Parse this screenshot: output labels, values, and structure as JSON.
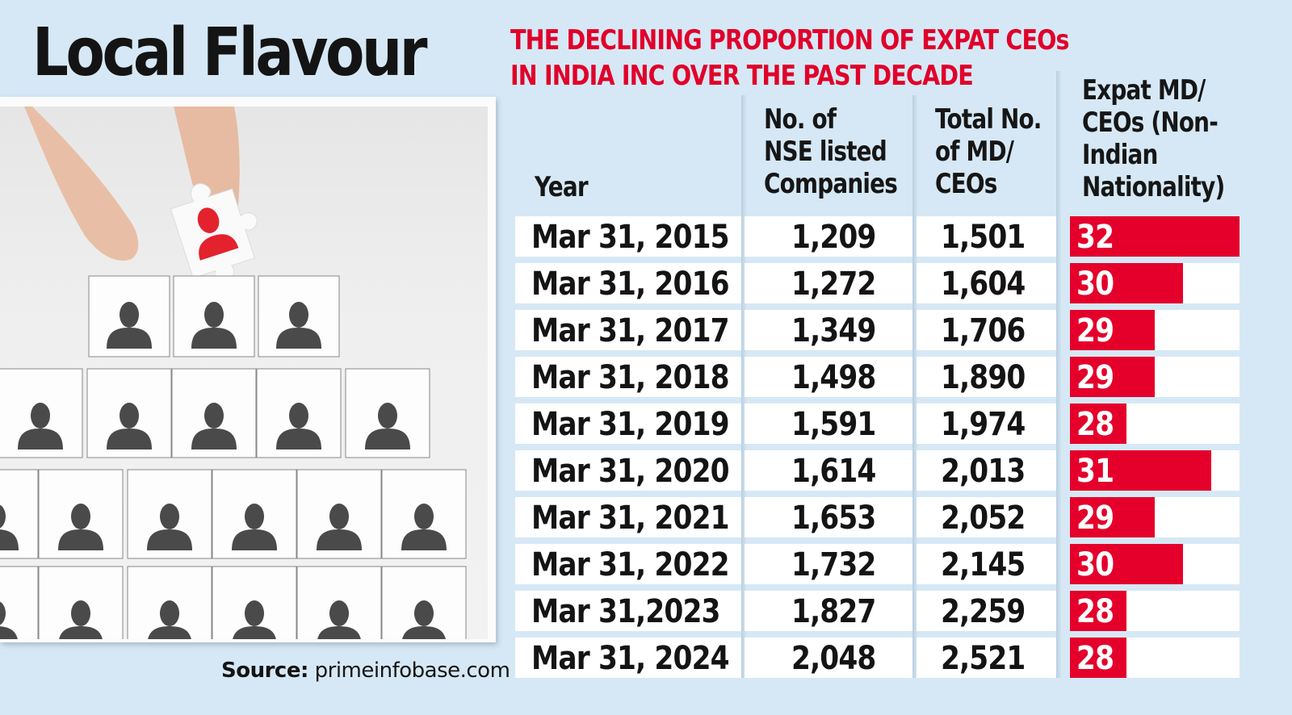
{
  "header": {
    "title": "Local Flavour",
    "subtitle_line1": "THE DECLINING PROPORTION OF EXPAT CEOs",
    "subtitle_line2": "IN INDIA INC OVER THE PAST DECADE"
  },
  "table": {
    "columns": [
      {
        "key": "year",
        "lines": [
          "Year"
        ]
      },
      {
        "key": "nse_listed_companies",
        "lines": [
          "No. of",
          "NSE listed",
          "Companies"
        ]
      },
      {
        "key": "total_md_ceos",
        "lines": [
          "Total No.",
          "of MD/",
          "CEOs"
        ]
      },
      {
        "key": "expat_md_ceos",
        "lines": [
          "Expat MD/",
          "CEOs (Non-",
          "Indian",
          "Nationality)"
        ]
      }
    ],
    "rows": [
      {
        "year": "Mar 31, 2015",
        "nse": "1,209",
        "total": "1,501",
        "expat": "32"
      },
      {
        "year": "Mar 31, 2016",
        "nse": "1,272",
        "total": "1,604",
        "expat": "30"
      },
      {
        "year": "Mar 31, 2017",
        "nse": "1,349",
        "total": "1,706",
        "expat": "29"
      },
      {
        "year": "Mar 31, 2018",
        "nse": "1,498",
        "total": "1,890",
        "expat": "29"
      },
      {
        "year": "Mar 31, 2019",
        "nse": "1,591",
        "total": "1,974",
        "expat": "28"
      },
      {
        "year": "Mar 31, 2020",
        "nse": "1,614",
        "total": "2,013",
        "expat": "31"
      },
      {
        "year": "Mar 31, 2021",
        "nse": "1,653",
        "total": "2,052",
        "expat": "29"
      },
      {
        "year": "Mar 31, 2022",
        "nse": "1,732",
        "total": "2,145",
        "expat": "30"
      },
      {
        "year": "Mar 31,2023",
        "nse": "1,827",
        "total": "2,259",
        "expat": "28"
      },
      {
        "year": "Mar 31, 2024",
        "nse": "2,048",
        "total": "2,521",
        "expat": "28"
      }
    ]
  },
  "source": {
    "label": "Source:",
    "value": "primeinfobase.com"
  },
  "colors": {
    "accent_red": "#e4002b",
    "background": "#d6e8f5",
    "text": "#141414"
  },
  "chart_data": {
    "type": "table",
    "title": "Local Flavour",
    "subtitle": "THE DECLINING PROPORTION OF EXPAT CEOs IN INDIA INC OVER THE PAST DECADE",
    "categories": [
      "Mar 31, 2015",
      "Mar 31, 2016",
      "Mar 31, 2017",
      "Mar 31, 2018",
      "Mar 31, 2019",
      "Mar 31, 2020",
      "Mar 31, 2021",
      "Mar 31, 2022",
      "Mar 31,2023",
      "Mar 31, 2024"
    ],
    "series": [
      {
        "name": "No. of NSE listed Companies",
        "values": [
          1209,
          1272,
          1349,
          1498,
          1591,
          1614,
          1653,
          1732,
          1827,
          2048
        ]
      },
      {
        "name": "Total No. of MD/CEOs",
        "values": [
          1501,
          1604,
          1706,
          1890,
          1974,
          2013,
          2052,
          2145,
          2259,
          2521
        ]
      },
      {
        "name": "Expat MD/CEOs (Non-Indian Nationality)",
        "values": [
          32,
          30,
          29,
          29,
          28,
          31,
          29,
          30,
          28,
          28
        ],
        "display": "horizontal bar"
      }
    ],
    "xlabel": "Year",
    "ylabel": "",
    "bar_scale_baseline": 26,
    "source": "Source: primeinfobase.com"
  }
}
